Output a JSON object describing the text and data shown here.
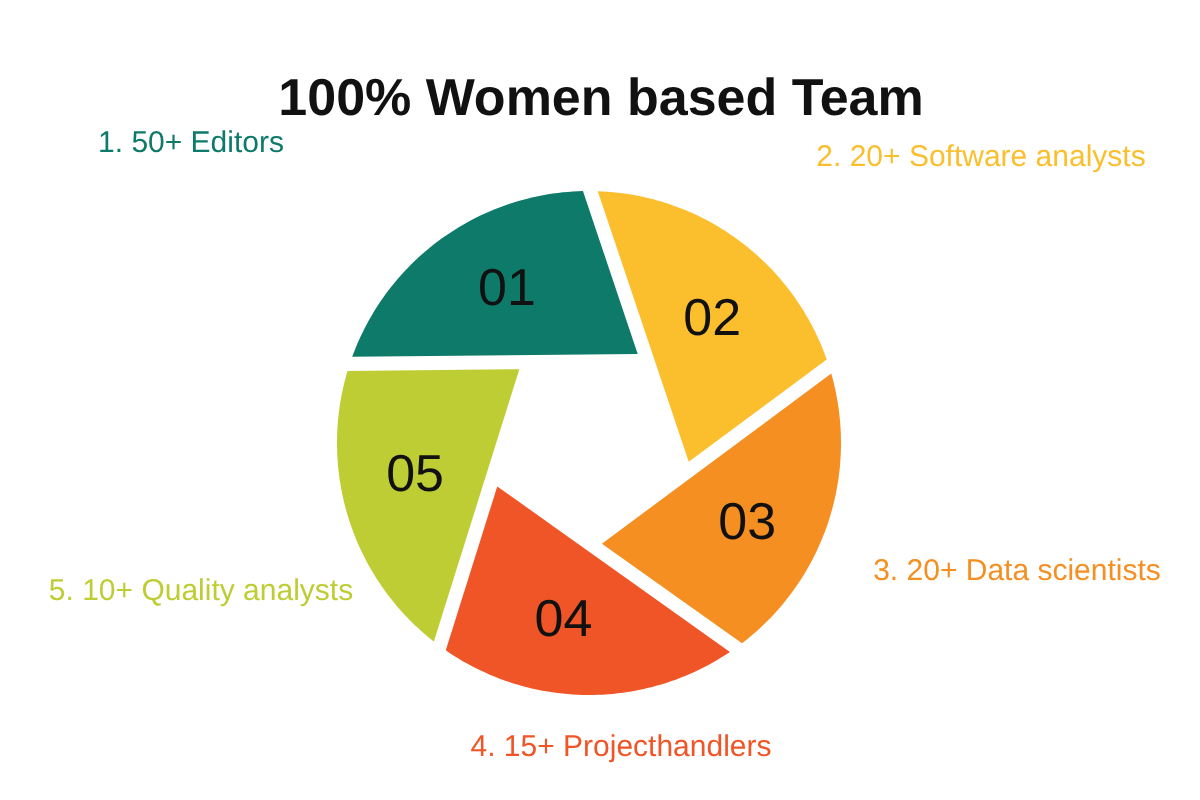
{
  "chart_data": {
    "type": "donut",
    "title": "100% Women based Team",
    "categories": [
      "1. 50+ Editors",
      "2. 20+ Software analysts",
      "3. 20+ Data scientists",
      "4. 15+ Projecthandlers",
      "5. 10+ Quality analysts"
    ],
    "values": [
      20,
      20,
      20,
      20,
      20
    ],
    "colors": [
      "#0e7a6a",
      "#fbbf2d",
      "#f68f22",
      "#f05527",
      "#bfcd35"
    ],
    "annotations": [
      "01",
      "02",
      "03",
      "04",
      "05"
    ]
  }
}
